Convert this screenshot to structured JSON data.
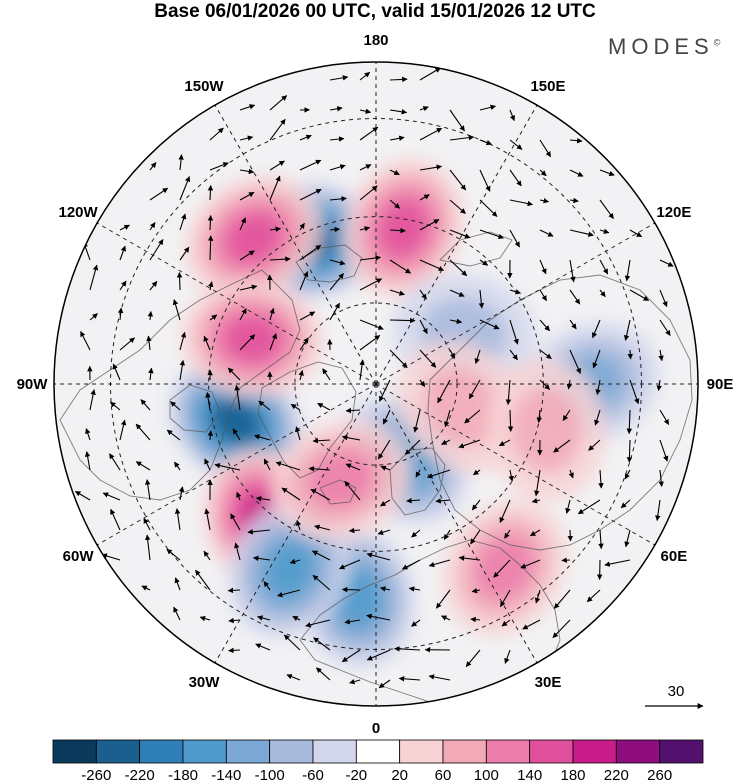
{
  "title": "Base 06/01/2026 00 UTC, valid 15/01/2026 12 UTC",
  "brand": {
    "name": "MODES",
    "mark": "©"
  },
  "chart_data": {
    "type": "polar-stereographic anomaly map",
    "field": "geopotential height anomaly with wind vectors",
    "projection": "north polar stereographic",
    "longitude_labels": [
      {
        "lon": 180,
        "text": "180"
      },
      {
        "lon": 150,
        "text": "150E"
      },
      {
        "lon": 120,
        "text": "120E"
      },
      {
        "lon": 90,
        "text": "90E"
      },
      {
        "lon": 60,
        "text": "60E"
      },
      {
        "lon": 30,
        "text": "30E"
      },
      {
        "lon": 0,
        "text": "0"
      },
      {
        "lon": -30,
        "text": "30W"
      },
      {
        "lon": -60,
        "text": "60W"
      },
      {
        "lon": -90,
        "text": "90W"
      },
      {
        "lon": -120,
        "text": "120W"
      },
      {
        "lon": -150,
        "text": "150W"
      }
    ],
    "reference_vector": {
      "label": "30"
    },
    "colorbar": {
      "ticks": [
        -260,
        -220,
        -180,
        -140,
        -100,
        -60,
        -20,
        20,
        60,
        100,
        140,
        180,
        220,
        260
      ],
      "colors": [
        "#0b3a5c",
        "#1b5f8f",
        "#2f80b8",
        "#4f9bcb",
        "#7ba8d4",
        "#a8bbdd",
        "#d4d7ec",
        "#ffffff",
        "#f7d3d5",
        "#f2a9b8",
        "#ec7eab",
        "#e1509c",
        "#c71c8a",
        "#8e0e7d",
        "#54106f"
      ]
    },
    "anomaly_centers": [
      {
        "name": "blue center north-east Pacific",
        "lon": -155,
        "lat": 52,
        "value": -220
      },
      {
        "name": "blue center Hudson Bay / Labrador",
        "lon": -75,
        "lat": 55,
        "value": -220
      },
      {
        "name": "pink center North Atlantic",
        "lon": -40,
        "lat": 48,
        "value": 180
      },
      {
        "name": "pink center Bering Sea",
        "lon": 170,
        "lat": 52,
        "value": 140
      },
      {
        "name": "pink center Alaska Gulf west",
        "lon": -140,
        "lat": 45,
        "value": 140
      },
      {
        "name": "pink center western Canada",
        "lon": -110,
        "lat": 58,
        "value": 140
      },
      {
        "name": "blue center Scandinavia",
        "lon": 20,
        "lat": 70,
        "value": -140
      },
      {
        "name": "blue center Iberia",
        "lon": -5,
        "lat": 40,
        "value": -140
      },
      {
        "name": "blue center western Atlantic",
        "lon": -25,
        "lat": 42,
        "value": -140
      },
      {
        "name": "blue center Central Asia",
        "lon": 90,
        "lat": 40,
        "value": -100
      },
      {
        "name": "blue center Siberia north",
        "lon": 120,
        "lat": 65,
        "value": -60
      },
      {
        "name": "pink center Kara Sea",
        "lon": 75,
        "lat": 68,
        "value": 60
      },
      {
        "name": "pink center Urals south",
        "lon": 75,
        "lat": 48,
        "value": 60
      },
      {
        "name": "pink center Mediterranean",
        "lon": 35,
        "lat": 38,
        "value": 100
      },
      {
        "name": "pink center Iceland",
        "lon": -20,
        "lat": 65,
        "value": 100
      }
    ]
  }
}
